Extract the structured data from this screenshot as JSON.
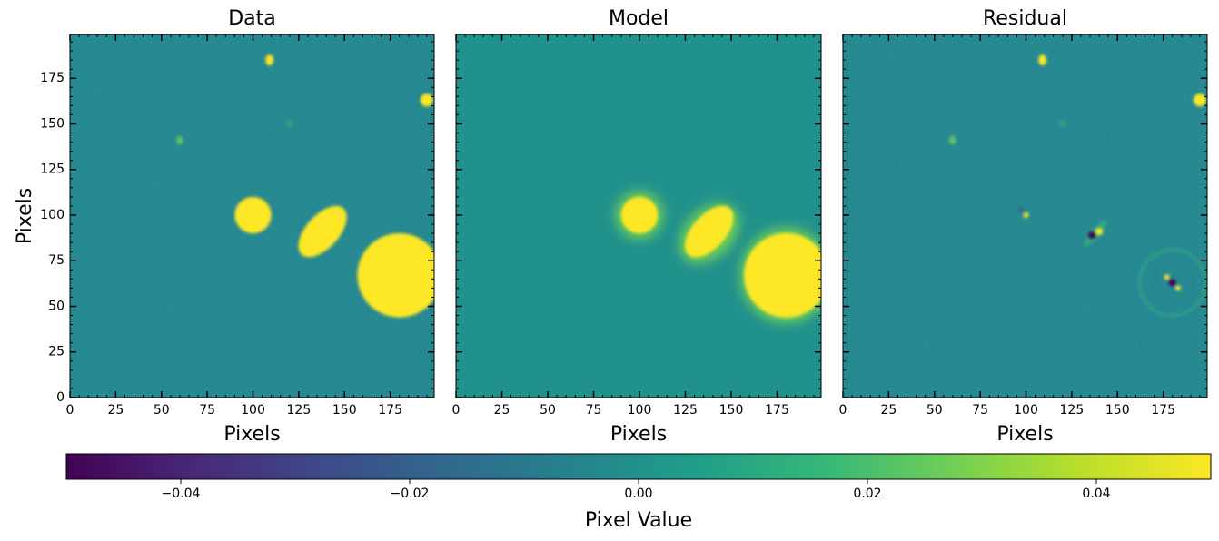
{
  "chart_data": [
    {
      "type": "image",
      "title": "Data",
      "xlabel": "Pixels",
      "ylabel": "Pixels",
      "xlim": [
        0,
        199
      ],
      "ylim": [
        0,
        199
      ],
      "xticks": [
        0,
        25,
        50,
        75,
        100,
        125,
        150,
        175
      ],
      "yticks": [
        0,
        25,
        50,
        75,
        100,
        125,
        150,
        175
      ]
    },
    {
      "type": "image",
      "title": "Model",
      "xlabel": "Pixels",
      "xlim": [
        0,
        199
      ],
      "ylim": [
        0,
        199
      ],
      "xticks": [
        0,
        25,
        50,
        75,
        100,
        125,
        150,
        175
      ],
      "yticks": [
        0,
        25,
        50,
        75,
        100,
        125,
        150,
        175
      ]
    },
    {
      "type": "image",
      "title": "Residual",
      "xlabel": "Pixels",
      "xlim": [
        0,
        199
      ],
      "ylim": [
        0,
        199
      ],
      "xticks": [
        0,
        25,
        50,
        75,
        100,
        125,
        150,
        175
      ],
      "yticks": [
        0,
        25,
        50,
        75,
        100,
        125,
        150,
        175
      ]
    }
  ],
  "colorbar": {
    "label": "Pixel Value",
    "cmap": "viridis",
    "clim": [
      -0.05,
      0.05
    ],
    "ticks": [
      {
        "value": -0.04,
        "label": "−0.04"
      },
      {
        "value": -0.02,
        "label": "−0.02"
      },
      {
        "value": 0,
        "label": "0.00"
      },
      {
        "value": 0.02,
        "label": "0.02"
      },
      {
        "value": 0.04,
        "label": "0.04"
      }
    ]
  }
}
